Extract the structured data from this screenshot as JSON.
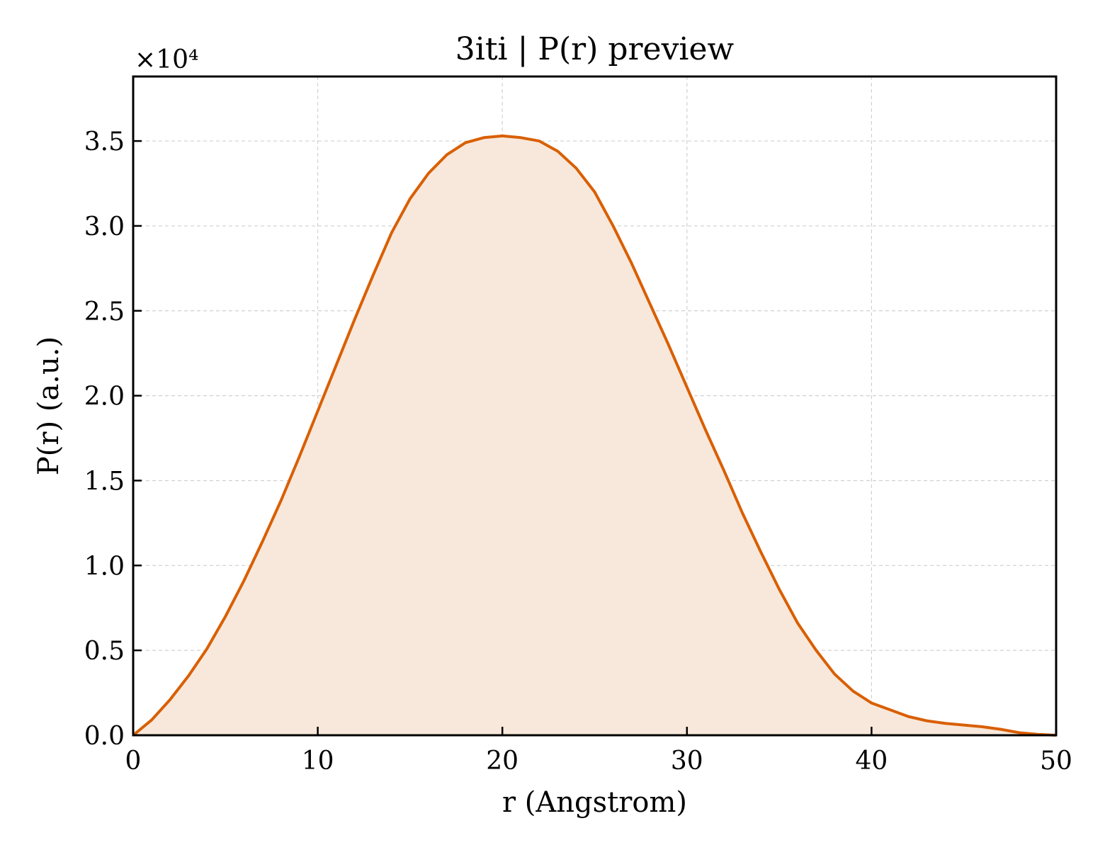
{
  "chart_data": {
    "type": "area",
    "title": "3iti | P(r) preview",
    "xlabel": "r (Angstrom)",
    "ylabel": "P(r) (a.u.)",
    "y_multiplier": "×10⁴",
    "xlim": [
      0,
      50
    ],
    "ylim": [
      0,
      3.88
    ],
    "xticks": [
      0,
      10,
      20,
      30,
      40,
      50
    ],
    "xtick_labels": [
      "0",
      "10",
      "20",
      "30",
      "40",
      "50"
    ],
    "yticks": [
      0,
      0.5,
      1.0,
      1.5,
      2.0,
      2.5,
      3.0,
      3.5
    ],
    "ytick_labels": [
      "0.0",
      "0.5",
      "1.0",
      "1.5",
      "2.0",
      "2.5",
      "3.0",
      "3.5"
    ],
    "grid": true,
    "line_color": "#d95f02",
    "fill_color": "#f8e8dc",
    "x": [
      0,
      1,
      2,
      3,
      4,
      5,
      6,
      7,
      8,
      9,
      10,
      11,
      12,
      13,
      14,
      15,
      16,
      17,
      18,
      19,
      20,
      21,
      22,
      23,
      24,
      25,
      26,
      27,
      28,
      29,
      30,
      31,
      32,
      33,
      34,
      35,
      36,
      37,
      38,
      39,
      40,
      41,
      42,
      43,
      44,
      45,
      46,
      47,
      48,
      49,
      50
    ],
    "y": [
      0,
      0.09,
      0.21,
      0.35,
      0.51,
      0.7,
      0.91,
      1.14,
      1.38,
      1.64,
      1.91,
      2.18,
      2.45,
      2.71,
      2.96,
      3.16,
      3.31,
      3.42,
      3.49,
      3.52,
      3.53,
      3.52,
      3.5,
      3.44,
      3.34,
      3.2,
      3.0,
      2.78,
      2.54,
      2.3,
      2.05,
      1.8,
      1.56,
      1.31,
      1.08,
      0.86,
      0.66,
      0.5,
      0.36,
      0.26,
      0.19,
      0.15,
      0.11,
      0.085,
      0.07,
      0.06,
      0.05,
      0.035,
      0.015,
      0.005,
      0.0
    ]
  }
}
